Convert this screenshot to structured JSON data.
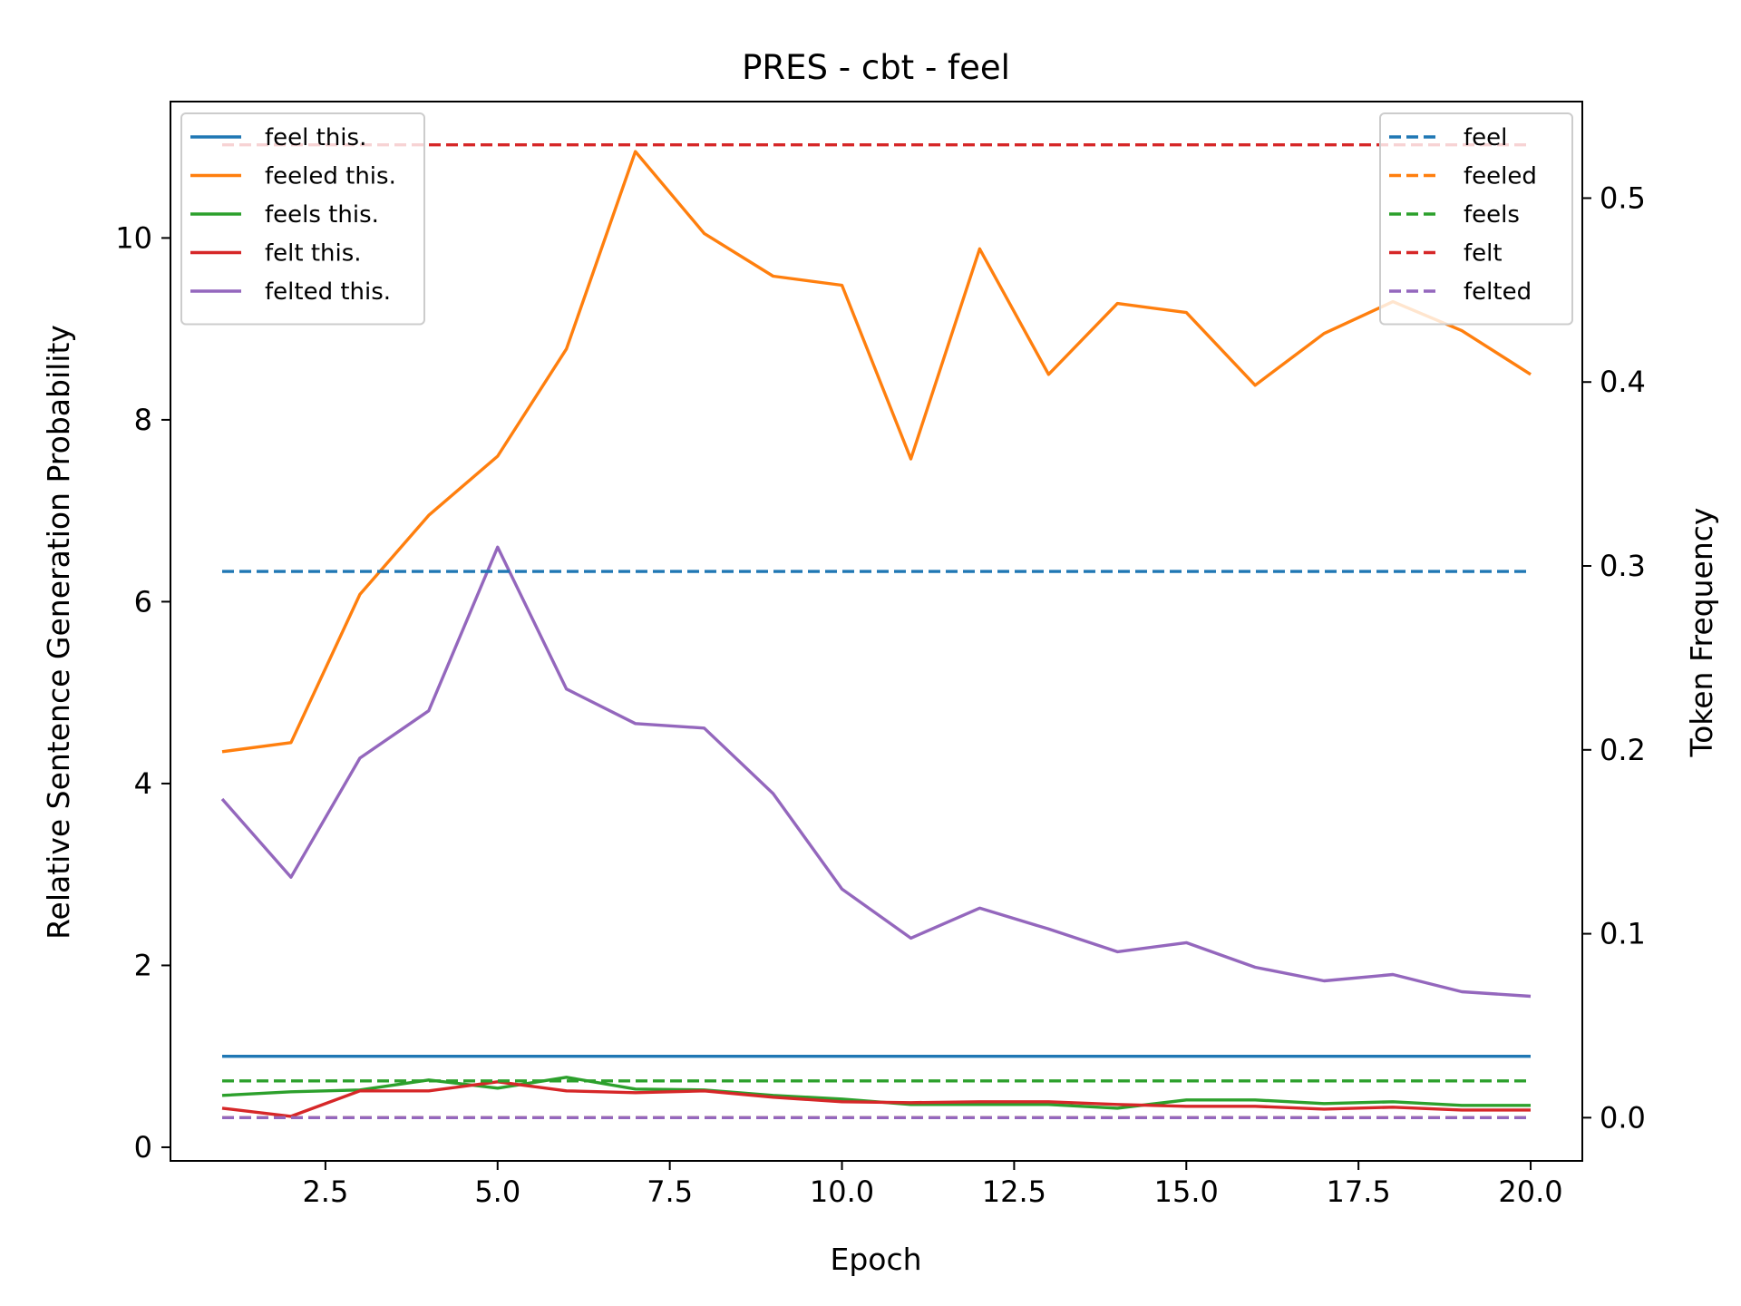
{
  "chart_data": {
    "type": "line",
    "title": "PRES - cbt - feel",
    "xlabel": "Epoch",
    "ylabel": "Relative Sentence Generation Probability",
    "ylabel_right": "Token Frequency",
    "xlim": [
      0.25,
      20.75
    ],
    "ylim": [
      -0.15,
      11.5
    ],
    "ylim_right": [
      -0.0235,
      0.5525
    ],
    "x_ticks": [
      2.5,
      5.0,
      7.5,
      10.0,
      12.5,
      15.0,
      17.5,
      20.0
    ],
    "x_tick_labels": [
      "2.5",
      "5.0",
      "7.5",
      "10.0",
      "12.5",
      "15.0",
      "17.5",
      "20.0"
    ],
    "y_ticks": [
      0,
      2,
      4,
      6,
      8,
      10
    ],
    "y_tick_labels": [
      "0",
      "2",
      "4",
      "6",
      "8",
      "10"
    ],
    "y_ticks_right": [
      0.0,
      0.1,
      0.2,
      0.3,
      0.4,
      0.5
    ],
    "y_tick_labels_right": [
      "0.0",
      "0.1",
      "0.2",
      "0.3",
      "0.4",
      "0.5"
    ],
    "grid": false,
    "legend_left_placement": "upper-left",
    "legend_right_placement": "upper-right",
    "x": [
      1,
      2,
      3,
      4,
      5,
      6,
      7,
      8,
      9,
      10,
      11,
      12,
      13,
      14,
      15,
      16,
      17,
      18,
      19,
      20
    ],
    "series": [
      {
        "name": "feel this.",
        "axis": "left",
        "style": "solid",
        "color": "#1f77b4",
        "values": [
          1.0,
          1.0,
          1.0,
          1.0,
          1.0,
          1.0,
          1.0,
          1.0,
          1.0,
          1.0,
          1.0,
          1.0,
          1.0,
          1.0,
          1.0,
          1.0,
          1.0,
          1.0,
          1.0,
          1.0
        ]
      },
      {
        "name": "feeled this.",
        "axis": "left",
        "style": "solid",
        "color": "#ff7f0e",
        "values": [
          4.35,
          4.45,
          6.08,
          6.95,
          7.6,
          8.78,
          10.95,
          10.05,
          9.58,
          9.48,
          7.57,
          9.88,
          8.5,
          9.28,
          9.18,
          8.38,
          8.95,
          9.3,
          8.98,
          8.5
        ]
      },
      {
        "name": "feels this.",
        "axis": "left",
        "style": "solid",
        "color": "#2ca02c",
        "values": [
          0.57,
          0.61,
          0.63,
          0.74,
          0.65,
          0.77,
          0.64,
          0.63,
          0.57,
          0.53,
          0.47,
          0.47,
          0.47,
          0.43,
          0.52,
          0.52,
          0.48,
          0.5,
          0.46,
          0.46
        ]
      },
      {
        "name": "felt this.",
        "axis": "left",
        "style": "solid",
        "color": "#d62728",
        "values": [
          0.43,
          0.34,
          0.62,
          0.62,
          0.72,
          0.62,
          0.6,
          0.62,
          0.55,
          0.5,
          0.49,
          0.5,
          0.5,
          0.47,
          0.45,
          0.45,
          0.42,
          0.44,
          0.41,
          0.41
        ]
      },
      {
        "name": "felted this.",
        "axis": "left",
        "style": "solid",
        "color": "#9467bd",
        "values": [
          3.83,
          2.97,
          4.28,
          4.8,
          6.6,
          5.04,
          4.66,
          4.61,
          3.89,
          2.84,
          2.3,
          2.63,
          2.4,
          2.15,
          2.25,
          1.98,
          1.83,
          1.9,
          1.71,
          1.66
        ]
      },
      {
        "name": "feel",
        "axis": "right",
        "style": "dashed",
        "color": "#1f77b4",
        "values": [
          0.297,
          0.297,
          0.297,
          0.297,
          0.297,
          0.297,
          0.297,
          0.297,
          0.297,
          0.297,
          0.297,
          0.297,
          0.297,
          0.297,
          0.297,
          0.297,
          0.297,
          0.297,
          0.297,
          0.297
        ]
      },
      {
        "name": "feeled",
        "axis": "right",
        "style": "dashed",
        "color": "#ff7f0e",
        "values": [
          0.0,
          0.0,
          0.0,
          0.0,
          0.0,
          0.0,
          0.0,
          0.0,
          0.0,
          0.0,
          0.0,
          0.0,
          0.0,
          0.0,
          0.0,
          0.0,
          0.0,
          0.0,
          0.0,
          0.0
        ]
      },
      {
        "name": "feels",
        "axis": "right",
        "style": "dashed",
        "color": "#2ca02c",
        "values": [
          0.02,
          0.02,
          0.02,
          0.02,
          0.02,
          0.02,
          0.02,
          0.02,
          0.02,
          0.02,
          0.02,
          0.02,
          0.02,
          0.02,
          0.02,
          0.02,
          0.02,
          0.02,
          0.02,
          0.02
        ]
      },
      {
        "name": "felt",
        "axis": "right",
        "style": "dashed",
        "color": "#d62728",
        "values": [
          0.529,
          0.529,
          0.529,
          0.529,
          0.529,
          0.529,
          0.529,
          0.529,
          0.529,
          0.529,
          0.529,
          0.529,
          0.529,
          0.529,
          0.529,
          0.529,
          0.529,
          0.529,
          0.529,
          0.529
        ]
      },
      {
        "name": "felted",
        "axis": "right",
        "style": "dashed",
        "color": "#9467bd",
        "values": [
          0.0,
          0.0,
          0.0,
          0.0,
          0.0,
          0.0,
          0.0,
          0.0,
          0.0,
          0.0,
          0.0,
          0.0,
          0.0,
          0.0,
          0.0,
          0.0,
          0.0,
          0.0,
          0.0,
          0.0
        ]
      }
    ]
  }
}
